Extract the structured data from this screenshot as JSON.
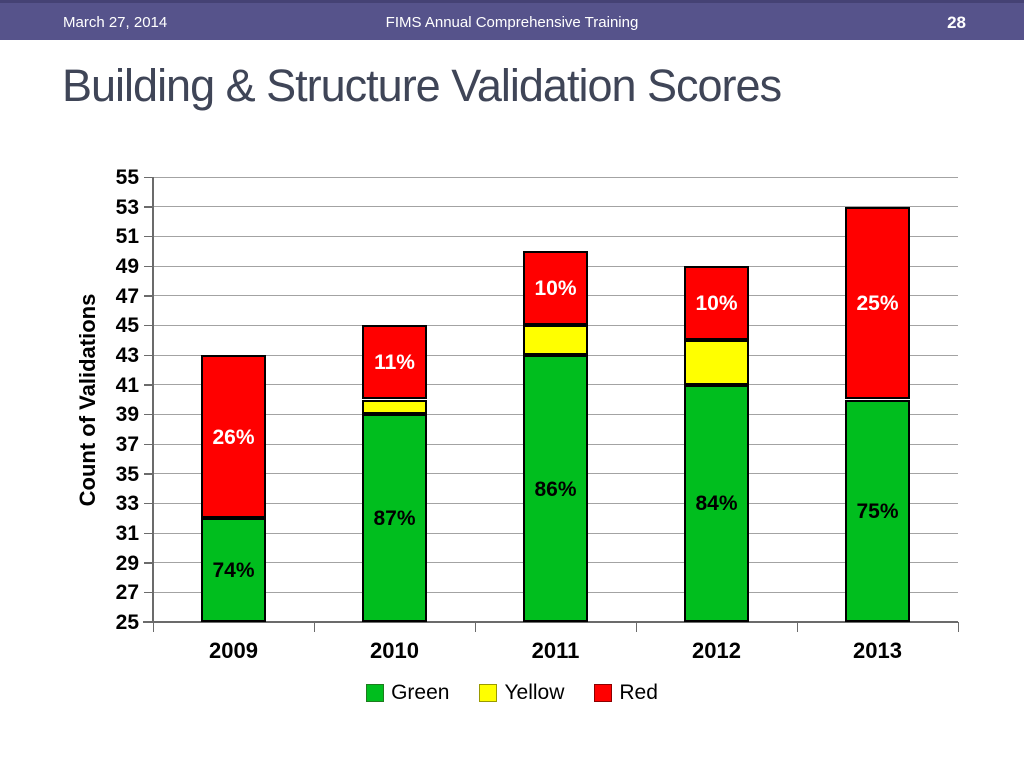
{
  "header": {
    "date": "March 27, 2014",
    "center": "FIMS Annual Comprehensive Training",
    "page": "28",
    "bg_color": "#56538B"
  },
  "title": {
    "text": "Building & Structure Validation Scores",
    "color": "#3F4557"
  },
  "chart_data": {
    "type": "bar",
    "stacked": true,
    "categories": [
      "2009",
      "2010",
      "2011",
      "2012",
      "2013"
    ],
    "series": [
      {
        "name": "Green",
        "color": "#00BE1E",
        "swatch_border": "#1E7C1E",
        "values": [
          32,
          39,
          43,
          41,
          40
        ],
        "labels": [
          "74%",
          "87%",
          "86%",
          "84%",
          "75%"
        ],
        "label_color": "#000000"
      },
      {
        "name": "Yellow",
        "color": "#FFFF00",
        "swatch_border": "#9A9A00",
        "values": [
          0,
          1,
          2,
          3,
          0
        ],
        "labels": [
          "",
          "",
          "",
          "",
          ""
        ],
        "label_color": "#000000"
      },
      {
        "name": "Red",
        "color": "#FF0000",
        "swatch_border": "#8B0000",
        "values": [
          11,
          5,
          5,
          5,
          13
        ],
        "labels": [
          "26%",
          "11%",
          "10%",
          "10%",
          "25%"
        ],
        "label_color": "#FFFFFF"
      }
    ],
    "totals": [
      43,
      45,
      50,
      49,
      53
    ],
    "ylabel": "Count of Validations",
    "ylim": [
      25,
      55
    ],
    "ytick_step": 2,
    "grid": true,
    "legend_position": "bottom",
    "legend": [
      "Green",
      "Yellow",
      "Red"
    ]
  }
}
